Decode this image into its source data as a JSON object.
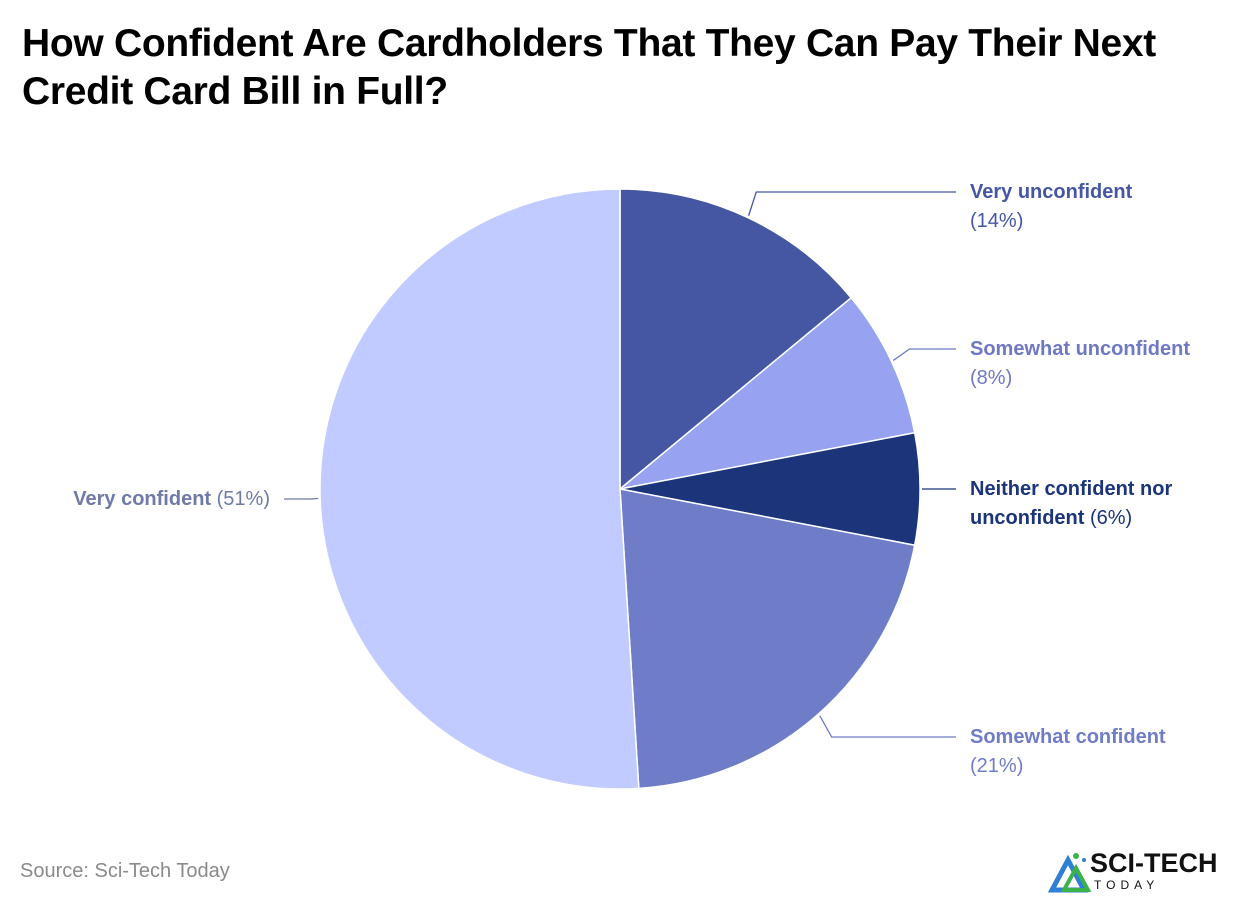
{
  "title": "How Confident Are Cardholders That They Can Pay Their Next Credit Card Bill in Full?",
  "source": "Source: Sci-Tech Today",
  "logo": {
    "word": "SCI-TECH",
    "sub": "TODAY",
    "icon": "sci-tech-logo-icon"
  },
  "chart_data": {
    "type": "pie",
    "title": "How Confident Are Cardholders That They Can Pay Their Next Credit Card Bill in Full?",
    "start": "12 o'clock",
    "direction": "clockwise",
    "slices": [
      {
        "label": "Very unconfident",
        "value": 14,
        "pct_label": "(14%)",
        "color": "#4557a3",
        "label_color": "#4557a3"
      },
      {
        "label": "Somewhat unconfident",
        "value": 8,
        "pct_label": "(8%)",
        "color": "#97a2f1",
        "label_color": "#6e78c4"
      },
      {
        "label": "Neither confident nor unconfident",
        "value": 6,
        "pct_label": "(6%)",
        "color": "#1b347a",
        "label_color": "#1b347a"
      },
      {
        "label": "Somewhat confident",
        "value": 21,
        "pct_label": "(21%)",
        "color": "#6f7cc8",
        "label_color": "#6f7cc8"
      },
      {
        "label": "Very confident",
        "value": 51,
        "pct_label": "(51%)",
        "color": "#c1cbff",
        "label_color": "#6f7aa8"
      }
    ]
  }
}
